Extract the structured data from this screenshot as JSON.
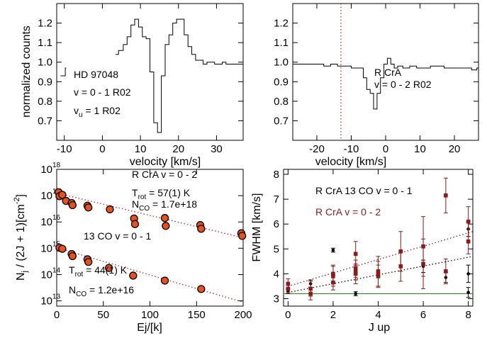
{
  "chart_data": [
    {
      "type": "line",
      "panel": "top-left",
      "xlabel": "velocity [km/s]",
      "ylabel": "normalized counts",
      "xlim": [
        -12,
        37
      ],
      "ylim": [
        0.6,
        1.3
      ],
      "x_ticks": [
        -10,
        0,
        10,
        20,
        30
      ],
      "y_ticks": [
        0.7,
        0.8,
        0.9,
        1.0,
        1.1,
        1.2
      ],
      "y_tick_labels": [
        "0.7",
        "0.8",
        "0.9",
        "1.0",
        "1.1",
        "1.2"
      ],
      "annotations": [
        "HD 97048",
        "v = 0 - 1 R02"
      ],
      "annotation_sub": {
        "main": "v",
        "sub": "u",
        "rest": " = 1 R02"
      },
      "series": [
        {
          "segment": 1,
          "x": [
            -11,
            -10,
            -9.5
          ],
          "y": [
            0.93,
            0.93,
            0.97
          ]
        },
        {
          "segment": 2,
          "x": [
            3.5,
            5,
            6,
            7,
            8,
            9,
            10,
            11,
            12,
            13,
            14,
            15,
            16,
            17,
            18,
            19,
            20,
            21,
            22,
            23,
            24,
            25,
            26,
            27,
            28,
            29,
            30,
            31,
            32,
            33,
            34,
            35,
            37
          ],
          "y": [
            1.04,
            1.06,
            1.09,
            1.13,
            1.19,
            1.22,
            1.18,
            1.13,
            1.12,
            0.95,
            0.69,
            0.64,
            0.93,
            1.09,
            1.14,
            1.2,
            1.22,
            1.22,
            1.14,
            1.08,
            1.04,
            1.01,
            1.01,
            0.99,
            1.0,
            1.0,
            0.99,
            0.99,
            1.0,
            0.99,
            0.99,
            0.99,
            0.99
          ]
        }
      ]
    },
    {
      "type": "line",
      "panel": "top-right",
      "xlabel": "velocity [km/s]",
      "xlim": [
        -27,
        27
      ],
      "ylim": [
        0.6,
        1.3
      ],
      "x_ticks": [
        -20,
        -10,
        0,
        10,
        20
      ],
      "y_ticks": [
        0.7,
        0.8,
        0.9,
        1.0,
        1.1,
        1.2
      ],
      "y_tick_labels": [
        "0.7",
        "0.8",
        "0.9",
        "1.0",
        "1.1",
        "1.2"
      ],
      "vline": {
        "x": -13,
        "color": "#b22222",
        "style": "dotted"
      },
      "annotations": [
        "R CrA",
        "v = 0 - 2 R02"
      ],
      "series": [
        {
          "x": [
            -27,
            -25,
            -23,
            -21,
            -19,
            -17,
            -15,
            -13,
            -11,
            -9,
            -7,
            -6,
            -5,
            -4,
            -3,
            -2,
            -1,
            0,
            1,
            2,
            3,
            4,
            6,
            8,
            10,
            12,
            14,
            16,
            18,
            20,
            22,
            24,
            26,
            27
          ],
          "y": [
            0.99,
            0.99,
            0.99,
            0.99,
            0.99,
            0.98,
            0.99,
            0.98,
            0.98,
            0.97,
            0.97,
            0.92,
            0.86,
            0.84,
            0.76,
            0.84,
            0.92,
            0.99,
            1.02,
            0.99,
            0.97,
            0.98,
            0.97,
            0.98,
            0.97,
            0.97,
            0.98,
            0.98,
            0.97,
            0.97,
            0.97,
            0.97,
            0.96,
            0.97
          ]
        }
      ]
    },
    {
      "type": "scatter",
      "panel": "bottom-left",
      "xlabel": "Ej/[k]",
      "ylabel": "N_j / (2J + 1)[cm^-2]",
      "xlim": [
        0,
        200
      ],
      "ylim_log10": [
        12.8,
        18
      ],
      "log_y": true,
      "x_ticks": [
        0,
        50,
        100,
        150,
        200
      ],
      "y_tick_exponents": [
        13,
        14,
        15,
        16,
        17,
        18
      ],
      "annotations": {
        "line1": "R CrA v = 0 - 2",
        "trot1_main": "T",
        "trot1_sub": "rot",
        "trot1_rest": " = 57(1) K",
        "nco1_main": "N",
        "nco1_sub": "CO",
        "nco1_rest": " = 1.7e+18",
        "line2": "13 CO v = 0 - 1",
        "trot2_main": "T",
        "trot2_sub": "rot",
        "trot2_rest": " = 44(1) K",
        "nco2_main": "N",
        "nco2_sub": "CO",
        "nco2_rest": " = 1.2e+16"
      },
      "series": [
        {
          "name": "R CrA v = 0 - 2",
          "x": [
            2,
            3,
            6,
            10,
            16,
            17,
            33,
            34,
            57,
            83,
            84,
            116,
            117,
            154,
            155,
            198,
            199
          ],
          "log10_y": [
            17.13,
            16.98,
            17.03,
            16.8,
            16.72,
            16.64,
            16.62,
            16.55,
            16.48,
            16.13,
            15.92,
            16.15,
            15.85,
            15.88,
            15.74,
            15.57,
            15.47
          ]
        },
        {
          "name": "13 CO v = 0 - 1",
          "x": [
            3,
            6,
            16,
            17,
            33,
            34,
            56,
            82,
            116,
            155
          ],
          "log10_y": [
            15.02,
            14.98,
            14.78,
            14.7,
            14.58,
            14.48,
            14.25,
            13.96,
            13.77,
            13.45
          ]
        }
      ],
      "fits": [
        {
          "x": [
            0,
            200
          ],
          "log10_y": [
            17.1,
            15.4
          ]
        },
        {
          "x": [
            0,
            200
          ],
          "log10_y": [
            15.02,
            12.95
          ]
        }
      ],
      "marker_color": "#e8501e",
      "fit_color": "#b22222"
    },
    {
      "type": "scatter",
      "panel": "bottom-right",
      "xlabel": "J up",
      "ylabel": "FWHM [km/s]",
      "xlim": [
        -0.2,
        8.2
      ],
      "ylim": [
        2.7,
        8.2
      ],
      "x_ticks": [
        0,
        2,
        4,
        6,
        8
      ],
      "y_ticks": [
        3,
        4,
        5,
        6,
        7,
        8
      ],
      "hline": {
        "y": 3.2,
        "color": "#2e8b22"
      },
      "legend": [
        "R CrA 13 CO v = 0 - 1",
        "R CrA v = 0 - 2"
      ],
      "series": [
        {
          "name": "R CrA 13 CO v = 0 - 1",
          "color": "#000000",
          "x": [
            0,
            1,
            2,
            3,
            6,
            7,
            8,
            8,
            8
          ],
          "y": [
            3.3,
            3.6,
            4.95,
            3.2,
            4.3,
            3.85,
            5.8,
            4.0,
            3.25
          ],
          "err": [
            0.1,
            0.15,
            0.08,
            0.08,
            0.25,
            0.2,
            0.3,
            0.35,
            0.2
          ]
        },
        {
          "name": "R CrA v = 0 - 2",
          "color": "#8b1a1a",
          "x": [
            0,
            0,
            1,
            1,
            2,
            2,
            2,
            3,
            3,
            3,
            3,
            4,
            4,
            4,
            5,
            5,
            6,
            6,
            7,
            7,
            8,
            8
          ],
          "y": [
            3.6,
            3.4,
            3.4,
            3.2,
            3.9,
            3.65,
            4.0,
            4.8,
            4.0,
            4.2,
            4.05,
            4.0,
            3.9,
            4.1,
            4.9,
            4.3,
            5.1,
            4.4,
            7.15,
            4.1,
            6.1,
            5.3
          ],
          "err": [
            0.2,
            0.15,
            0.3,
            0.25,
            0.4,
            0.3,
            0.35,
            0.5,
            0.4,
            0.35,
            0.3,
            0.5,
            0.45,
            0.6,
            0.8,
            0.6,
            1.2,
            1.0,
            0.7,
            0.5,
            0.6,
            0.5
          ]
        }
      ],
      "fits": [
        {
          "color": "#8b1a1a",
          "x": [
            0,
            8.2
          ],
          "y": [
            3.5,
            5.7
          ]
        },
        {
          "color": "#000000",
          "x": [
            0,
            8.2
          ],
          "y": [
            3.25,
            4.7
          ]
        }
      ]
    }
  ]
}
